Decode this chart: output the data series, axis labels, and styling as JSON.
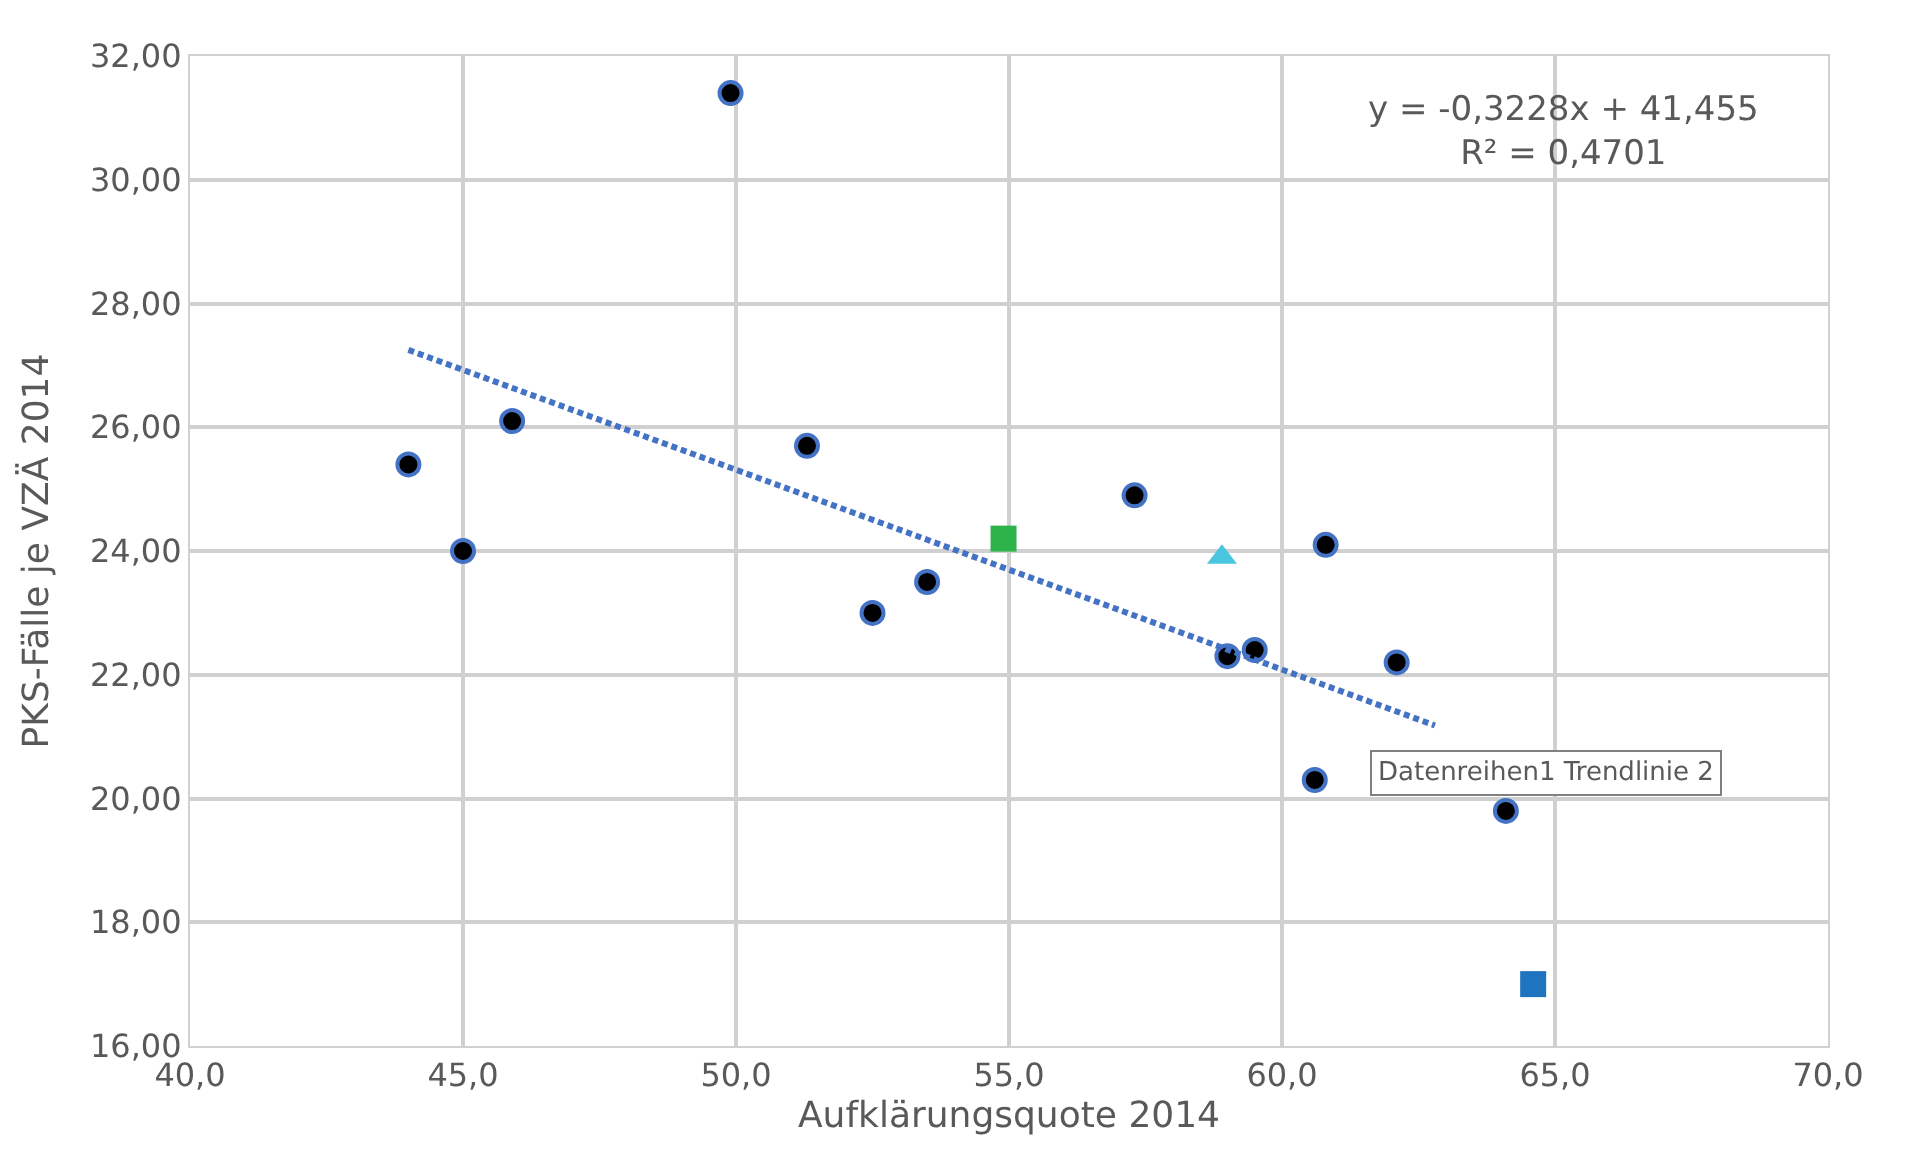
{
  "chart_data": {
    "type": "scatter",
    "xlabel": "Aufklärungsquote 2014",
    "ylabel": "PKS-Fälle je VZÄ 2014",
    "xlim": [
      40,
      70
    ],
    "ylim": [
      16,
      32
    ],
    "xticks": [
      {
        "value": 40,
        "label": "40,0"
      },
      {
        "value": 45,
        "label": "45,0"
      },
      {
        "value": 50,
        "label": "50,0"
      },
      {
        "value": 55,
        "label": "55,0"
      },
      {
        "value": 60,
        "label": "60,0"
      },
      {
        "value": 65,
        "label": "65,0"
      },
      {
        "value": 70,
        "label": "70,0"
      }
    ],
    "yticks": [
      {
        "value": 16,
        "label": "16,00"
      },
      {
        "value": 18,
        "label": "18,00"
      },
      {
        "value": 20,
        "label": "20,00"
      },
      {
        "value": 22,
        "label": "22,00"
      },
      {
        "value": 24,
        "label": "24,00"
      },
      {
        "value": 26,
        "label": "26,00"
      },
      {
        "value": 28,
        "label": "28,00"
      },
      {
        "value": 30,
        "label": "30,00"
      },
      {
        "value": 32,
        "label": "32,00"
      }
    ],
    "grid": true,
    "series": [
      {
        "marker": "circle",
        "color": "#000000",
        "x": [
          49.9,
          44.0,
          45.0,
          45.9,
          51.3,
          52.5,
          53.5,
          57.3,
          60.8,
          59.0,
          59.5,
          62.1,
          60.6,
          64.1
        ],
        "values": [
          31.4,
          25.4,
          24.0,
          26.1,
          25.7,
          23.0,
          23.5,
          24.9,
          24.1,
          22.3,
          22.4,
          22.2,
          20.3,
          19.8
        ]
      },
      {
        "marker": "square",
        "color": "#2db34a",
        "x": [
          54.9
        ],
        "values": [
          24.2
        ]
      },
      {
        "marker": "triangle",
        "color": "#4bc6e0",
        "x": [
          58.9
        ],
        "values": [
          23.9
        ]
      },
      {
        "marker": "square",
        "color": "#1f74c0",
        "x": [
          64.6
        ],
        "values": [
          17.0
        ]
      },
      {
        "type": "line",
        "marker": "none",
        "line_style": "dotted",
        "color": "#4472c4",
        "x": [
          44.0,
          62.8
        ],
        "values": [
          27.25,
          21.18
        ]
      }
    ],
    "annotations": [
      "y = -0,3228x + 41,455\nR² = 0,4701",
      "Datenreihen1 Trendlinie 2"
    ]
  }
}
